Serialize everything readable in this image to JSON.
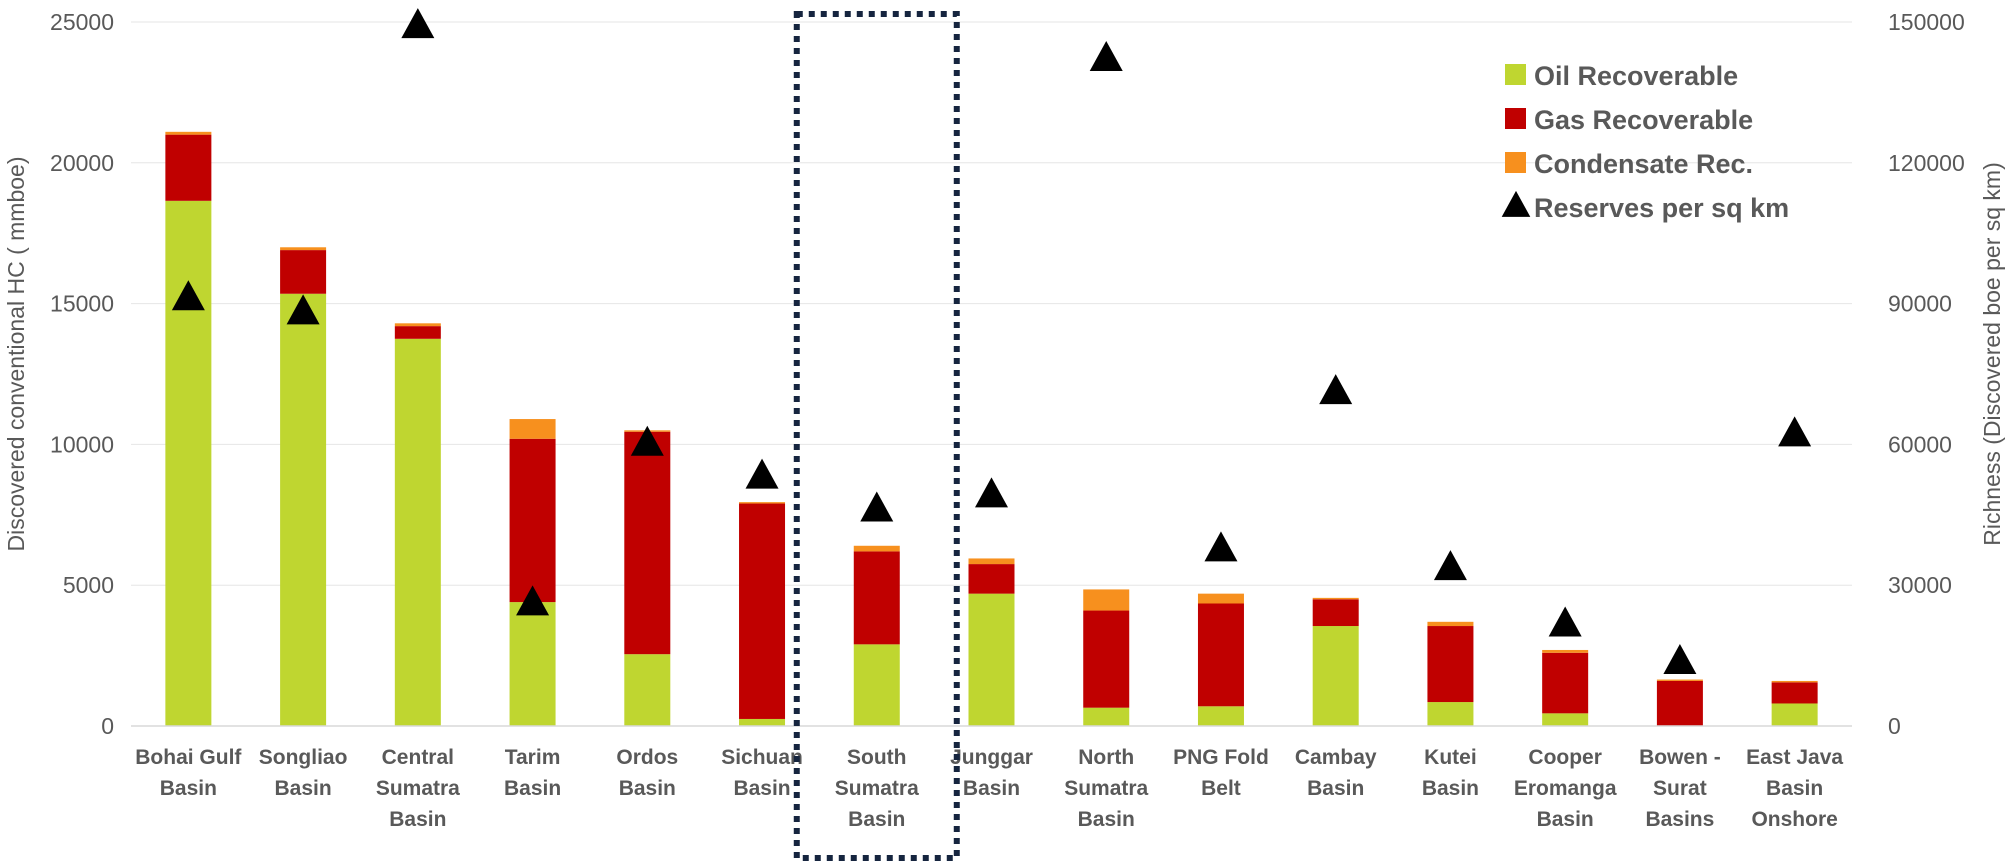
{
  "chart_data": {
    "type": "bar",
    "stacked": true,
    "categories": [
      "Bohai Gulf Basin",
      "Songliao Basin",
      "Central Sumatra Basin",
      "Tarim Basin",
      "Ordos Basin",
      "Sichuan Basin",
      "South Sumatra Basin",
      "Junggar Basin",
      "North Sumatra Basin",
      "PNG Fold Belt",
      "Cambay Basin",
      "Kutei Basin",
      "Cooper Eromanga Basin",
      "Bowen - Surat Basins",
      "East Java Basin Onshore"
    ],
    "category_lines": [
      [
        "Bohai Gulf",
        "Basin"
      ],
      [
        "Songliao",
        "Basin"
      ],
      [
        "Central",
        "Sumatra",
        "Basin"
      ],
      [
        "Tarim",
        "Basin"
      ],
      [
        "Ordos",
        "Basin"
      ],
      [
        "Sichuan",
        "Basin"
      ],
      [
        "South",
        "Sumatra",
        "Basin"
      ],
      [
        "Junggar",
        "Basin"
      ],
      [
        "North",
        "Sumatra",
        "Basin"
      ],
      [
        "PNG Fold",
        "Belt"
      ],
      [
        "Cambay",
        "Basin"
      ],
      [
        "Kutei",
        "Basin"
      ],
      [
        "Cooper",
        "Eromanga",
        "Basin"
      ],
      [
        "Bowen -",
        "Surat",
        "Basins"
      ],
      [
        "East Java",
        "Basin",
        "Onshore"
      ]
    ],
    "series": [
      {
        "name": "Oil Recoverable",
        "color": "#bfd630",
        "axis": "left",
        "values": [
          18650,
          15350,
          13750,
          4400,
          2550,
          250,
          2900,
          4700,
          650,
          700,
          3550,
          850,
          450,
          0,
          800
        ]
      },
      {
        "name": "Gas Recoverable",
        "color": "#c00000",
        "axis": "left",
        "values": [
          2350,
          1550,
          450,
          5800,
          7900,
          7650,
          3300,
          1050,
          3450,
          3650,
          950,
          2700,
          2150,
          1600,
          750
        ]
      },
      {
        "name": "Condensate Rec.",
        "color": "#f7901e",
        "axis": "left",
        "values": [
          100,
          100,
          100,
          700,
          50,
          50,
          200,
          200,
          750,
          350,
          50,
          150,
          100,
          50,
          50
        ]
      },
      {
        "name": "Reserves per sq km",
        "color": "#000000",
        "axis": "right",
        "marker": "triangle",
        "values": [
          91000,
          88000,
          149000,
          26000,
          60000,
          53000,
          46000,
          49000,
          142000,
          37500,
          71000,
          33500,
          21500,
          13500,
          62000
        ]
      }
    ],
    "ylabel": "Discovered conventional HC ( mmboe)",
    "y2label": "Richness (Discovered boe per sq km)",
    "ylim": [
      0,
      25000
    ],
    "y2lim": [
      0,
      150000
    ],
    "yticks": [
      "0",
      "5000",
      "10000",
      "15000",
      "20000",
      "25000"
    ],
    "y2ticks": [
      "0",
      "30000",
      "60000",
      "90000",
      "120000",
      "150000"
    ],
    "grid": true,
    "legend_position": "top-right",
    "highlighted_category": "South Sumatra Basin"
  }
}
